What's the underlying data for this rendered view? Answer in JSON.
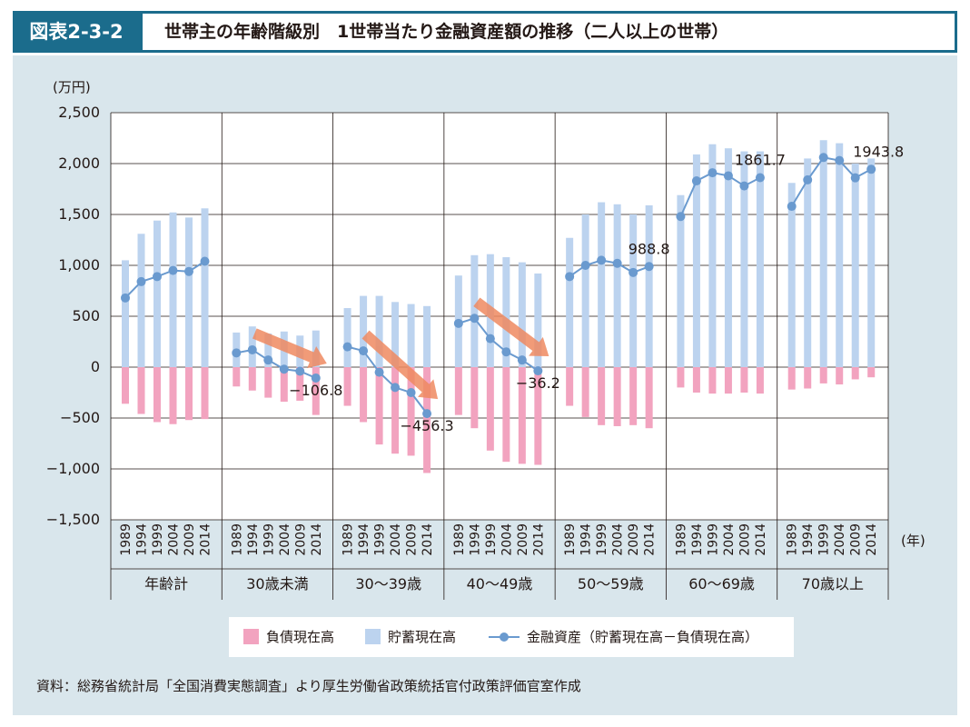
{
  "header": {
    "figure_label": "図表2-3-2",
    "title": "世帯主の年齢階級別　1世帯当たり金融資産額の推移（二人以上の世帯）"
  },
  "chart_data": {
    "type": "bar",
    "title": "世帯主の年齢階級別　1世帯当たり金融資産額の推移（二人以上の世帯）",
    "ylabel": "(万円)",
    "xlabel": "(年)",
    "ylim": [
      -1500,
      2500
    ],
    "yticks": [
      2500,
      2000,
      1500,
      1000,
      500,
      0,
      -500,
      -1000,
      -1500
    ],
    "ytick_labels": [
      "2,500",
      "2,000",
      "1,500",
      "1,000",
      "500",
      "0",
      "−500",
      "−1,000",
      "−1,500"
    ],
    "grid": true,
    "years": [
      "1989",
      "1994",
      "1999",
      "2004",
      "2009",
      "2014"
    ],
    "groups": [
      {
        "name": "年齢計",
        "savings": [
          1050,
          1310,
          1440,
          1520,
          1470,
          1560
        ],
        "debt": [
          -360,
          -460,
          -540,
          -560,
          -520,
          -510
        ],
        "assets": [
          680,
          840,
          890,
          950,
          940,
          1040
        ]
      },
      {
        "name": "30歳未満",
        "savings": [
          340,
          400,
          330,
          350,
          310,
          360
        ],
        "debt": [
          -190,
          -230,
          -300,
          -340,
          -330,
          -470
        ],
        "assets": [
          140,
          170,
          70,
          -20,
          -40,
          -106.8
        ]
      },
      {
        "name": "30～39歳",
        "savings": [
          580,
          700,
          700,
          640,
          620,
          600
        ],
        "debt": [
          -380,
          -540,
          -760,
          -850,
          -870,
          -1040
        ],
        "assets": [
          200,
          160,
          -50,
          -200,
          -250,
          -456.3
        ]
      },
      {
        "name": "40～49歳",
        "savings": [
          900,
          1100,
          1110,
          1080,
          1030,
          920
        ],
        "debt": [
          -470,
          -600,
          -820,
          -930,
          -950,
          -960
        ],
        "assets": [
          430,
          480,
          280,
          150,
          70,
          -36.2
        ]
      },
      {
        "name": "50～59歳",
        "savings": [
          1270,
          1500,
          1620,
          1600,
          1500,
          1590
        ],
        "debt": [
          -380,
          -490,
          -570,
          -580,
          -570,
          -600
        ],
        "assets": [
          890,
          1000,
          1050,
          1020,
          930,
          988.8
        ]
      },
      {
        "name": "60～69歳",
        "savings": [
          1690,
          2090,
          2190,
          2150,
          2120,
          2120
        ],
        "debt": [
          -200,
          -250,
          -260,
          -260,
          -250,
          -260
        ],
        "assets": [
          1480,
          1830,
          1910,
          1880,
          1780,
          1861.7
        ]
      },
      {
        "name": "70歳以上",
        "savings": [
          1810,
          2050,
          2230,
          2200,
          2000,
          2050
        ],
        "debt": [
          -220,
          -210,
          -160,
          -170,
          -120,
          -100
        ],
        "assets": [
          1580,
          1840,
          2060,
          2030,
          1860,
          1943.8
        ]
      }
    ],
    "series": [
      {
        "name": "負債現在高",
        "type": "bar",
        "color": "#f2a3bf"
      },
      {
        "name": "貯蓄現在高",
        "type": "bar",
        "color": "#bcd3ef"
      },
      {
        "name": "金融資産（貯蓄現在高－負債現在高）",
        "type": "line",
        "color": "#6a9acf"
      }
    ],
    "annotations": [
      {
        "group": 1,
        "year_index": 5,
        "text": "−106.8"
      },
      {
        "group": 2,
        "year_index": 5,
        "text": "−456.3"
      },
      {
        "group": 3,
        "year_index": 5,
        "text": "−36.2"
      },
      {
        "group": 4,
        "year_index": 5,
        "text": "988.8"
      },
      {
        "group": 5,
        "year_index": 5,
        "text": "1861.7"
      },
      {
        "group": 6,
        "year_index": 5,
        "text": "1943.8"
      }
    ],
    "trend_arrows_on_groups": [
      1,
      2,
      3
    ],
    "legend_position": "bottom"
  },
  "legend": {
    "debt_label": "負債現在高",
    "savings_label": "貯蓄現在高",
    "assets_label": "金融資産（貯蓄現在高－負債現在高）"
  },
  "source_note": "資料：総務省統計局「全国消費実態調査」より厚生労働省政策統括官付政策評価官室作成",
  "colors": {
    "header_bg": "#1b6c8c",
    "panel_bg": "#d9e6ec",
    "debt_bar": "#f2a3bf",
    "savings_bar": "#bcd3ef",
    "assets_line": "#6a9acf",
    "arrow": "#ef8a61"
  }
}
